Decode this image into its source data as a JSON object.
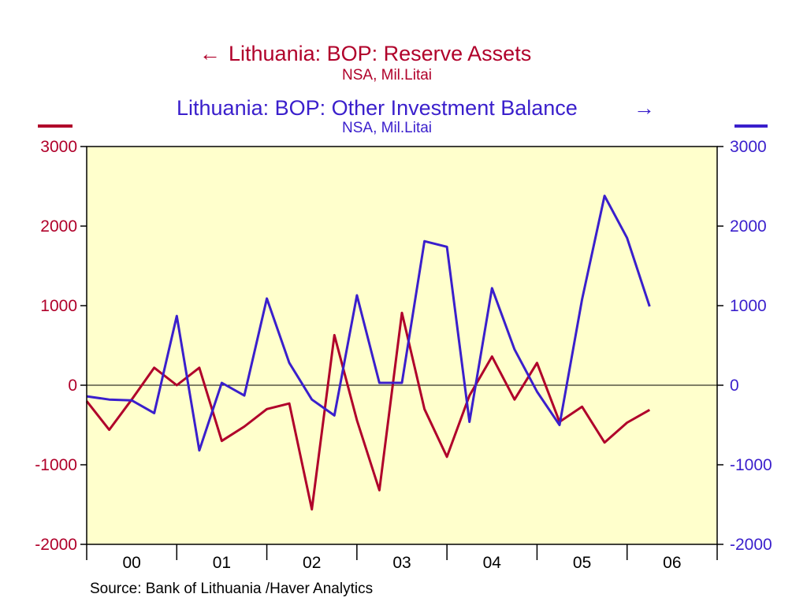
{
  "colors": {
    "left_series": "#b0002a",
    "right_series": "#3a1fcc",
    "plot_background": "#ffffcc",
    "axis": "#000000"
  },
  "titles": {
    "left": {
      "arrow": "←",
      "title": "Lithuania: BOP: Reserve Assets",
      "subtitle": "NSA, Mil.Litai"
    },
    "right": {
      "arrow": "→",
      "title": "Lithuania: BOP: Other Investment Balance",
      "subtitle": "NSA, Mil.Litai"
    }
  },
  "source": "Source:  Bank of Lithuania /Haver Analytics",
  "chart_data": {
    "type": "line",
    "x": [
      "2000-Q1",
      "2000-Q2",
      "2000-Q3",
      "2000-Q4",
      "2001-Q1",
      "2001-Q2",
      "2001-Q3",
      "2001-Q4",
      "2002-Q1",
      "2002-Q2",
      "2002-Q3",
      "2002-Q4",
      "2003-Q1",
      "2003-Q2",
      "2003-Q3",
      "2003-Q4",
      "2004-Q1",
      "2004-Q2",
      "2004-Q3",
      "2004-Q4",
      "2005-Q1",
      "2005-Q2",
      "2005-Q3",
      "2005-Q4",
      "2006-Q1",
      "2006-Q2"
    ],
    "x_tick_labels": [
      "00",
      "01",
      "02",
      "03",
      "04",
      "05",
      "06"
    ],
    "left_axis": {
      "ylim": [
        -2000,
        3000
      ],
      "ticks": [
        3000,
        2000,
        1000,
        0,
        -1000,
        -2000
      ],
      "tick_labels": [
        "3000",
        "2000",
        "1000",
        "0",
        "-1000",
        "-2000"
      ]
    },
    "right_axis": {
      "ylim": [
        -2000,
        3000
      ],
      "ticks": [
        3000,
        2000,
        1000,
        0,
        -1000,
        -2000
      ],
      "tick_labels": [
        "3000",
        "2000",
        "1000",
        "0",
        "-1000",
        "-2000"
      ]
    },
    "zero_line": true,
    "grid": false,
    "series": [
      {
        "name": "Lithuania: BOP: Reserve Assets",
        "axis": "left",
        "values": [
          -200,
          -560,
          -180,
          220,
          0,
          220,
          -700,
          -520,
          -300,
          -230,
          -1560,
          630,
          -440,
          -1320,
          910,
          -300,
          -900,
          -130,
          360,
          -180,
          280,
          -460,
          -270,
          -720,
          -470,
          -310
        ]
      },
      {
        "name": "Lithuania: BOP: Other Investment Balance",
        "axis": "right",
        "values": [
          -140,
          -180,
          -190,
          -350,
          870,
          -820,
          30,
          -130,
          1090,
          280,
          -180,
          -380,
          1130,
          30,
          30,
          1810,
          1740,
          -460,
          1220,
          450,
          -80,
          -500,
          1080,
          2380,
          1850,
          990
        ]
      }
    ]
  }
}
